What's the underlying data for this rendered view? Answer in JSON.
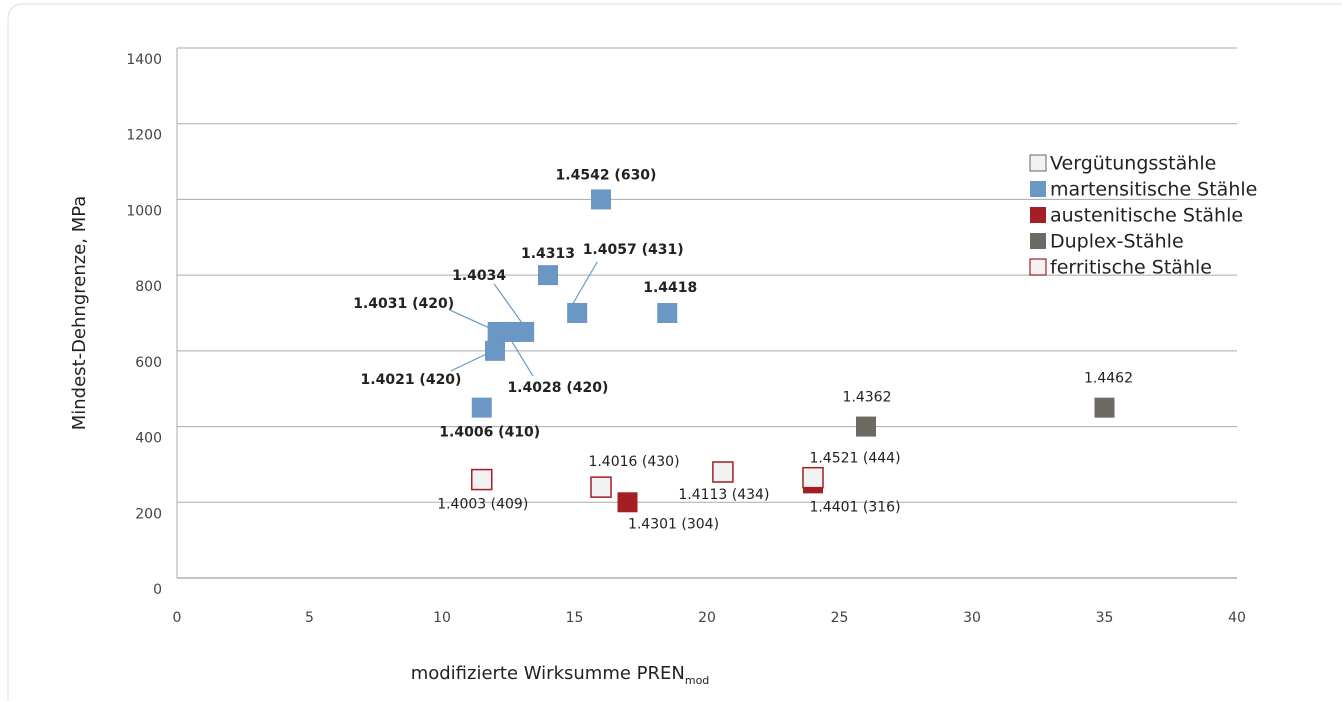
{
  "chart_data": {
    "type": "scatter",
    "x_label": "modifizierte Wirksumme PREN",
    "x_label_sub": "mod",
    "y_label": "Mindest-Dehngrenze, MPa",
    "xlim": [
      0,
      40
    ],
    "xticks": [
      0,
      5,
      10,
      15,
      20,
      25,
      30,
      35,
      40
    ],
    "ylim": [
      0,
      1400
    ],
    "yticks": [
      0,
      200,
      400,
      600,
      800,
      1000,
      1200,
      1400
    ],
    "grid": true,
    "legend": "upper right",
    "series": [
      {
        "name": "Vergütungsstähle",
        "color": "#7f7f7f",
        "fill": "#f2f2f2",
        "x": [],
        "y": [],
        "labels": []
      },
      {
        "name": "martensitische Stähle",
        "color": "#6a97c4",
        "fill": "#6a97c4",
        "x": [
          16,
          14,
          15.1,
          18.5,
          12.1,
          13.1,
          12.6,
          12,
          11.5
        ],
        "y": [
          1000,
          800,
          700,
          700,
          650,
          650,
          650,
          600,
          450
        ],
        "labels": [
          "1.4542 (630)",
          "1.4313",
          "1.4057 (431)",
          "1.4418",
          "1.4031 (420)",
          "1.4034",
          "1.4028 (420)",
          "1.4021 (420)",
          "1.4006 (410)"
        ]
      },
      {
        "name": "austenitische Stähle",
        "color": "#a31f24",
        "fill": "#a31f24",
        "x": [
          17,
          24
        ],
        "y": [
          200,
          250
        ],
        "labels": [
          "1.4301 (304)",
          "1.4401 (316)"
        ]
      },
      {
        "name": "Duplex-Stähle",
        "color": "#6d6a64",
        "fill": "#6d6a64",
        "x": [
          26,
          35
        ],
        "y": [
          400,
          450
        ],
        "labels": [
          "1.4362",
          "1.4462"
        ]
      },
      {
        "name": "ferritische Stähle",
        "color": "#a31f24",
        "fill": "#f2f2f2",
        "x": [
          11.5,
          16,
          20.6,
          24
        ],
        "y": [
          260,
          240,
          280,
          265
        ],
        "labels": [
          "1.4003 (409)",
          "1.4016 (430)",
          "1.4113 (434)",
          "1.4521 (444)"
        ]
      }
    ]
  }
}
